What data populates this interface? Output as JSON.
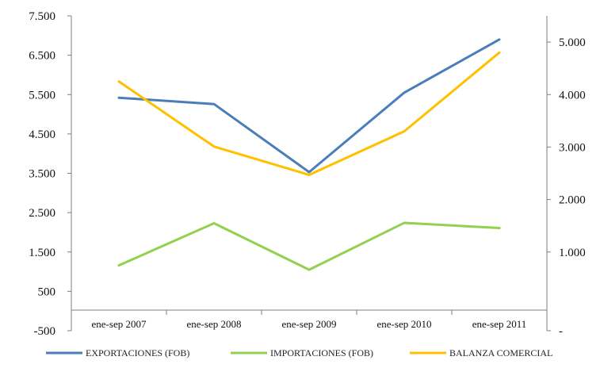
{
  "chart_data": {
    "type": "line",
    "title": "",
    "xlabel": "",
    "ylabel": "",
    "categories": [
      "ene-sep 2007",
      "ene-sep 2008",
      "ene-sep 2009",
      "ene-sep 2010",
      "ene-sep 2011"
    ],
    "y_left": {
      "ylim": [
        -500,
        7500
      ],
      "tick_values": [
        -500,
        500,
        1500,
        2500,
        3500,
        4500,
        5500,
        6500,
        7500
      ],
      "tick_labels": [
        "-500",
        "500",
        "1.500",
        "2.500",
        "3.500",
        "4.500",
        "5.500",
        "6.500",
        "7.500"
      ]
    },
    "y_right": {
      "ylim": [
        -500,
        5500
      ],
      "tick_values": [
        -500,
        1000,
        2000,
        3000,
        4000,
        5000
      ],
      "tick_labels": [
        "-",
        "1.000",
        "2.000",
        "3.000",
        "4.000",
        "5.000"
      ]
    },
    "series": [
      {
        "name": "EXPORTACIONES (FOB)",
        "axis": "left",
        "color": "#4a7ebb",
        "values": [
          5420,
          5260,
          3530,
          5550,
          6900
        ]
      },
      {
        "name": "IMPORTACIONES (FOB)",
        "axis": "left",
        "color": "#92d050",
        "values": [
          1160,
          2230,
          1050,
          2240,
          2110
        ]
      },
      {
        "name": "BALANZA COMERCIAL",
        "axis": "right",
        "color": "#ffc000",
        "values": [
          4250,
          3010,
          2470,
          3300,
          4800
        ]
      }
    ],
    "grid": false,
    "legend_position": "bottom"
  }
}
